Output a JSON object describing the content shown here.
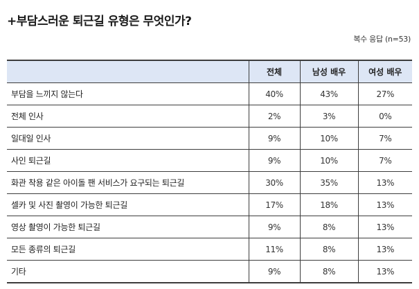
{
  "title": "+부담스러운 퇴근길 유형은 무엇인가?",
  "note": "복수 응답 (n=53)",
  "columns": [
    "",
    "전체",
    "남성 배우",
    "여성 배우"
  ],
  "rows": [
    [
      "부담을 느끼지 않는다",
      "40%",
      "43%",
      "27%"
    ],
    [
      "전체 인사",
      "2%",
      "3%",
      "0%"
    ],
    [
      "일대일 인사",
      "9%",
      "10%",
      "7%"
    ],
    [
      "사인 퇴근길",
      "9%",
      "10%",
      "7%"
    ],
    [
      "화관 착용 같은 아이돌 팬 서비스가 요구되는 퇴근길",
      "30%",
      "35%",
      "13%"
    ],
    [
      "셀카 및 사진 촬영이 가능한 퇴근길",
      "17%",
      "18%",
      "13%"
    ],
    [
      "영상 촬영이 가능한 퇴근길",
      "9%",
      "8%",
      "13%"
    ],
    [
      "모든 종류의 퇴근길",
      "11%",
      "8%",
      "13%"
    ],
    [
      "기타",
      "9%",
      "8%",
      "13%"
    ]
  ],
  "colors": {
    "header_bg": "#dde6f5",
    "border": "#3c3c3c"
  }
}
